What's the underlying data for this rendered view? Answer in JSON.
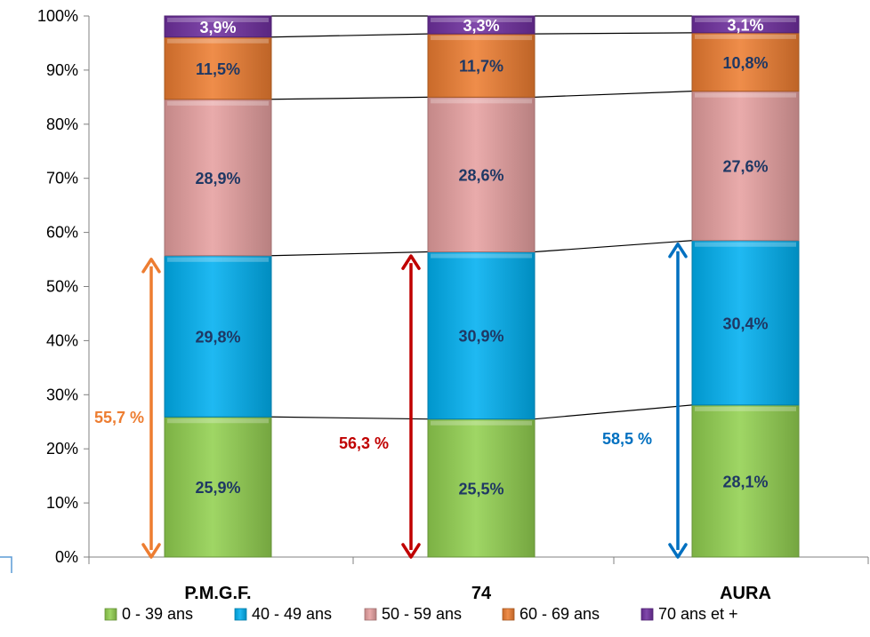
{
  "chart_data": {
    "type": "bar",
    "stacked": true,
    "categories": [
      "P.M.G.F.",
      "74",
      "AURA"
    ],
    "ylim": [
      0,
      100
    ],
    "yticks": [
      "0%",
      "10%",
      "20%",
      "30%",
      "40%",
      "50%",
      "60%",
      "70%",
      "80%",
      "90%",
      "100%"
    ],
    "grid": false,
    "legend_position": "bottom",
    "series": [
      {
        "name": "0 - 39 ans",
        "values": [
          25.9,
          25.5,
          28.1
        ],
        "labels": [
          "25,9%",
          "25,5%",
          "28,1%"
        ],
        "color": "#92D050"
      },
      {
        "name": "40 - 49 ans",
        "values": [
          29.8,
          30.9,
          30.4
        ],
        "labels": [
          "29,8%",
          "30,9%",
          "30,4%"
        ],
        "color": "#00B0F0"
      },
      {
        "name": "50 - 59 ans",
        "values": [
          28.9,
          28.6,
          27.6
        ],
        "labels": [
          "28,9%",
          "28,6%",
          "27,6%"
        ],
        "color": "#E6A0A0"
      },
      {
        "name": "60 - 69 ans",
        "values": [
          11.5,
          11.7,
          10.8
        ],
        "labels": [
          "11,5%",
          "11,7%",
          "10,8%"
        ],
        "color": "#ED7D31"
      },
      {
        "name": "70 ans et +",
        "values": [
          3.9,
          3.3,
          3.1
        ],
        "labels": [
          "3,9%",
          "3,3%",
          "3,1%"
        ],
        "color": "#7030A0"
      }
    ],
    "annotations": [
      {
        "category": "P.M.G.F.",
        "text": "55,7 %",
        "value": 55.7,
        "color": "#ED7D31"
      },
      {
        "category": "74",
        "text": "56,3  %",
        "value": 56.3,
        "color": "#C00000"
      },
      {
        "category": "AURA",
        "text": "58,5  %",
        "value": 58.5,
        "color": "#0070C0"
      }
    ],
    "colors": {
      "label_dark": "#1F3864",
      "label_light": "#FFFFFF",
      "axis": "#808080"
    }
  }
}
